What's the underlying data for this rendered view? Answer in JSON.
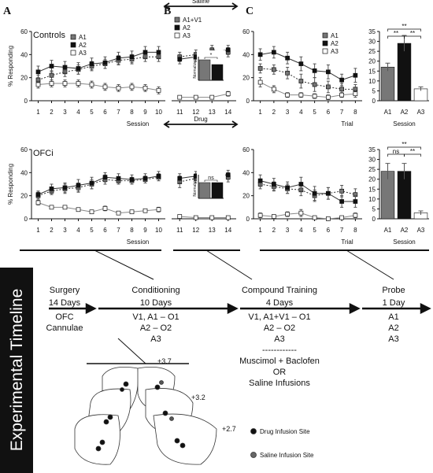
{
  "chart_data": [
    {
      "type": "line",
      "panel": "A",
      "subtitle": "Controls",
      "ylabel": "% Responding",
      "xlabel": "Session",
      "legend": "upper left",
      "x": [
        1,
        2,
        3,
        4,
        5,
        6,
        7,
        8,
        9,
        10
      ],
      "xlim": [
        0.5,
        10.5
      ],
      "xticks": [
        1,
        2,
        3,
        4,
        5,
        6,
        7,
        8,
        9,
        10
      ],
      "ylim": [
        0,
        60
      ],
      "yticks": [
        0,
        20,
        40,
        60
      ],
      "series": [
        {
          "name": "A1",
          "color": "#777777",
          "dashed": true,
          "values": [
            18,
            22,
            25,
            27,
            30,
            32,
            35,
            36,
            38,
            38
          ],
          "errors": [
            4,
            4,
            4,
            4,
            4,
            4,
            4,
            4,
            4,
            4
          ]
        },
        {
          "name": "A2",
          "color": "#111111",
          "dashed": false,
          "values": [
            25,
            30,
            29,
            28,
            32,
            33,
            37,
            38,
            42,
            42
          ],
          "errors": [
            5,
            5,
            5,
            5,
            5,
            5,
            5,
            5,
            5,
            5
          ]
        },
        {
          "name": "A3",
          "color": "#ffffff",
          "dashed": false,
          "values": [
            14,
            15,
            15,
            15,
            14,
            12,
            11,
            12,
            11,
            9
          ],
          "errors": [
            3,
            3,
            3,
            3,
            3,
            3,
            3,
            3,
            3,
            3
          ]
        }
      ]
    },
    {
      "type": "line",
      "panel": "B",
      "banner": "Saline",
      "legend": "upper left",
      "x": [
        11,
        12,
        13,
        14
      ],
      "xlim": [
        10.5,
        14.5
      ],
      "xticks": [
        11,
        12,
        13,
        14
      ],
      "ylim": [
        0,
        60
      ],
      "series": [
        {
          "name": "A1+V1",
          "color": "#777777",
          "dashed": true,
          "values": [
            38,
            40,
            44,
            42
          ],
          "errors": [
            4,
            4,
            4,
            4
          ]
        },
        {
          "name": "A2",
          "color": "#111111",
          "dashed": false,
          "values": [
            36,
            38,
            42,
            44
          ],
          "errors": [
            4,
            4,
            4,
            4
          ]
        },
        {
          "name": "A3",
          "color": "#ffffff",
          "dashed": false,
          "values": [
            3,
            3,
            3,
            6
          ],
          "errors": [
            1,
            1,
            1,
            2
          ]
        }
      ],
      "inset": {
        "ylabel": "Normalized",
        "ylim": [
          0,
          150
        ],
        "values": [
          130,
          100
        ],
        "colors": [
          "#777777",
          "#111111"
        ],
        "annotation": "*"
      }
    },
    {
      "type": "line",
      "panel": "C",
      "xlabel": "Trial",
      "legend": "upper right",
      "x": [
        1,
        2,
        3,
        4,
        5,
        6,
        7,
        8
      ],
      "xlim": [
        0.5,
        8.5
      ],
      "xticks": [
        1,
        2,
        3,
        4,
        5,
        6,
        7,
        8
      ],
      "ylim": [
        0,
        60
      ],
      "yticks": [
        0,
        20,
        40,
        60
      ],
      "series": [
        {
          "name": "A1",
          "color": "#777777",
          "dashed": true,
          "values": [
            28,
            27,
            24,
            17,
            14,
            12,
            10,
            10
          ],
          "errors": [
            4,
            4,
            5,
            6,
            6,
            5,
            5,
            4
          ]
        },
        {
          "name": "A2",
          "color": "#111111",
          "dashed": false,
          "values": [
            40,
            42,
            37,
            32,
            26,
            25,
            18,
            22
          ],
          "errors": [
            5,
            5,
            5,
            6,
            6,
            6,
            5,
            6
          ]
        },
        {
          "name": "A3",
          "color": "#ffffff",
          "dashed": false,
          "values": [
            16,
            10,
            5,
            5,
            4,
            3,
            5,
            6
          ],
          "errors": [
            4,
            3,
            2,
            2,
            2,
            2,
            2,
            3
          ]
        }
      ]
    },
    {
      "type": "bar",
      "xlabel": "Session",
      "categories": [
        "A1",
        "A2",
        "A3"
      ],
      "colors": [
        "#777777",
        "#111111",
        "#ffffff"
      ],
      "values": [
        17,
        29,
        6
      ],
      "errors": [
        2,
        4,
        1
      ],
      "ylim": [
        0,
        35
      ],
      "yticks": [
        0,
        5,
        10,
        15,
        20,
        25,
        30,
        35
      ],
      "annotations": [
        {
          "text": "**",
          "between": [
            "A1",
            "A3"
          ]
        },
        {
          "text": "**",
          "between": [
            "A1",
            "A2"
          ]
        },
        {
          "text": "**",
          "between": [
            "A2",
            "A3"
          ]
        }
      ]
    },
    {
      "type": "line",
      "subtitle": "OFCi",
      "ylabel": "% Responding",
      "xlabel": "Session",
      "x": [
        1,
        2,
        3,
        4,
        5,
        6,
        7,
        8,
        9,
        10
      ],
      "xlim": [
        0.5,
        10.5
      ],
      "xticks": [
        1,
        2,
        3,
        4,
        5,
        6,
        7,
        8,
        9,
        10
      ],
      "ylim": [
        0,
        60
      ],
      "yticks": [
        0,
        20,
        40,
        60
      ],
      "series": [
        {
          "name": "A1",
          "color": "#777777",
          "dashed": true,
          "values": [
            20,
            24,
            26,
            27,
            30,
            34,
            33,
            33,
            34,
            36
          ],
          "errors": [
            3,
            3,
            4,
            4,
            4,
            4,
            3,
            3,
            3,
            3
          ]
        },
        {
          "name": "A2",
          "color": "#111111",
          "dashed": false,
          "values": [
            21,
            26,
            27,
            29,
            31,
            36,
            35,
            34,
            35,
            37
          ],
          "errors": [
            3,
            4,
            4,
            5,
            5,
            4,
            4,
            4,
            4,
            4
          ]
        },
        {
          "name": "A3",
          "color": "#ffffff",
          "dashed": false,
          "values": [
            14,
            10,
            10,
            8,
            6,
            9,
            5,
            6,
            7,
            8
          ],
          "errors": [
            2,
            1,
            1,
            1,
            1,
            2,
            1,
            1,
            1,
            2
          ]
        }
      ]
    },
    {
      "type": "line",
      "banner": "Drug",
      "x": [
        11,
        12,
        13,
        14
      ],
      "xlim": [
        10.5,
        14.5
      ],
      "xticks": [
        11,
        12,
        13,
        14
      ],
      "ylim": [
        0,
        60
      ],
      "series": [
        {
          "name": "A1+V1",
          "color": "#777777",
          "dashed": true,
          "values": [
            32,
            35,
            36,
            36
          ],
          "errors": [
            5,
            4,
            4,
            4
          ]
        },
        {
          "name": "A2",
          "color": "#111111",
          "dashed": false,
          "values": [
            35,
            37,
            38,
            38
          ],
          "errors": [
            4,
            4,
            4,
            4
          ]
        },
        {
          "name": "A3",
          "color": "#ffffff",
          "dashed": false,
          "values": [
            2,
            1,
            1,
            1
          ],
          "errors": [
            1,
            1,
            1,
            1
          ]
        }
      ],
      "inset": {
        "ylabel": "Normalized",
        "ylim": [
          0,
          150
        ],
        "values": [
          100,
          100
        ],
        "colors": [
          "#777777",
          "#111111"
        ],
        "annotation": "ns"
      }
    },
    {
      "type": "line",
      "xlabel": "Trial",
      "x": [
        1,
        2,
        3,
        4,
        5,
        6,
        7,
        8
      ],
      "xlim": [
        0.5,
        8.5
      ],
      "xticks": [
        1,
        2,
        3,
        4,
        5,
        6,
        7,
        8
      ],
      "ylim": [
        0,
        60
      ],
      "yticks": [
        0,
        20,
        40,
        60
      ],
      "series": [
        {
          "name": "A1",
          "color": "#777777",
          "dashed": true,
          "values": [
            30,
            28,
            26,
            25,
            20,
            22,
            24,
            21
          ],
          "errors": [
            4,
            4,
            4,
            5,
            5,
            5,
            5,
            5
          ]
        },
        {
          "name": "A2",
          "color": "#111111",
          "dashed": false,
          "values": [
            33,
            30,
            27,
            30,
            22,
            22,
            15,
            15
          ],
          "errors": [
            5,
            5,
            5,
            6,
            6,
            5,
            5,
            5
          ]
        },
        {
          "name": "A3",
          "color": "#ffffff",
          "dashed": false,
          "values": [
            3,
            2,
            4,
            5,
            1,
            0,
            1,
            3
          ],
          "errors": [
            2,
            1,
            2,
            3,
            1,
            1,
            1,
            2
          ]
        }
      ]
    },
    {
      "type": "bar",
      "xlabel": "Session",
      "categories": [
        "A1",
        "A2",
        "A3"
      ],
      "colors": [
        "#777777",
        "#111111",
        "#ffffff"
      ],
      "values": [
        24,
        24,
        3
      ],
      "errors": [
        4,
        4,
        1
      ],
      "ylim": [
        0,
        35
      ],
      "yticks": [
        0,
        5,
        10,
        15,
        20,
        25,
        30,
        35
      ],
      "annotations": [
        {
          "text": "**",
          "between": [
            "A1",
            "A3"
          ]
        },
        {
          "text": "ns",
          "between": [
            "A1",
            "A2"
          ]
        },
        {
          "text": "**",
          "between": [
            "A2",
            "A3"
          ]
        }
      ]
    }
  ],
  "timeline": {
    "title": "Experimental Timeline",
    "stages": [
      {
        "name": "Surgery",
        "duration": "14 Days",
        "lines": [
          "OFC",
          "Cannulae"
        ]
      },
      {
        "name": "Conditioning",
        "duration": "10 Days",
        "lines": [
          "V1, A1 – O1",
          "A2 – O2",
          "A3"
        ]
      },
      {
        "name": "Compound Training",
        "duration": "4 Days",
        "lines": [
          "V1, A1+V1 – O1",
          "A2 – O2",
          "A3",
          "------------",
          "Muscimol + Baclofen",
          "OR",
          "Saline Infusions"
        ]
      },
      {
        "name": "Probe",
        "duration": "1 Day",
        "lines": [
          "A1",
          "A2",
          "A3"
        ]
      }
    ],
    "brain": {
      "levels": [
        "+3.7",
        "+3.2",
        "+2.7"
      ],
      "legend": [
        "Drug Infusion Site",
        "Saline Infusion Site"
      ]
    }
  }
}
